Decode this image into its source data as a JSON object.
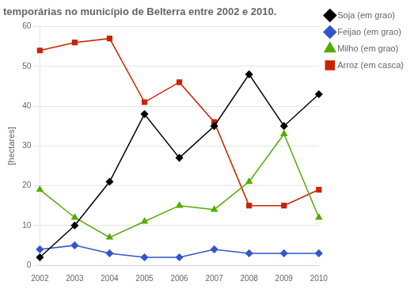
{
  "chart_data": {
    "type": "line",
    "title": "temporárias no município de Belterra entre 2002 e 2010.",
    "categories": [
      "2002",
      "2003",
      "2004",
      "2005",
      "2006",
      "2007",
      "2008",
      "2009",
      "2010"
    ],
    "series": [
      {
        "name": "Soja (em grao)",
        "color": "#000000",
        "marker": "diamond",
        "values": [
          2,
          10,
          21,
          38,
          27,
          35,
          48,
          35,
          43
        ]
      },
      {
        "name": "Feijao (em grao)",
        "color": "#3355cc",
        "marker": "diamond",
        "values": [
          4,
          5,
          3,
          2,
          2,
          4,
          3,
          3,
          3
        ]
      },
      {
        "name": "Milho (em grao)",
        "color": "#55aa00",
        "marker": "triangle",
        "values": [
          19,
          12,
          7,
          11,
          15,
          14,
          21,
          33,
          12
        ]
      },
      {
        "name": "Arroz (em casca)",
        "color": "#cc2200",
        "marker": "square",
        "values": [
          54,
          56,
          57,
          41,
          46,
          36,
          15,
          15,
          19
        ]
      }
    ],
    "ylabel": "[hectares]",
    "ylim": [
      0,
      60
    ],
    "yticks": [
      0,
      10,
      20,
      30,
      40,
      50,
      60
    ],
    "grid": "y",
    "legend": "right"
  }
}
